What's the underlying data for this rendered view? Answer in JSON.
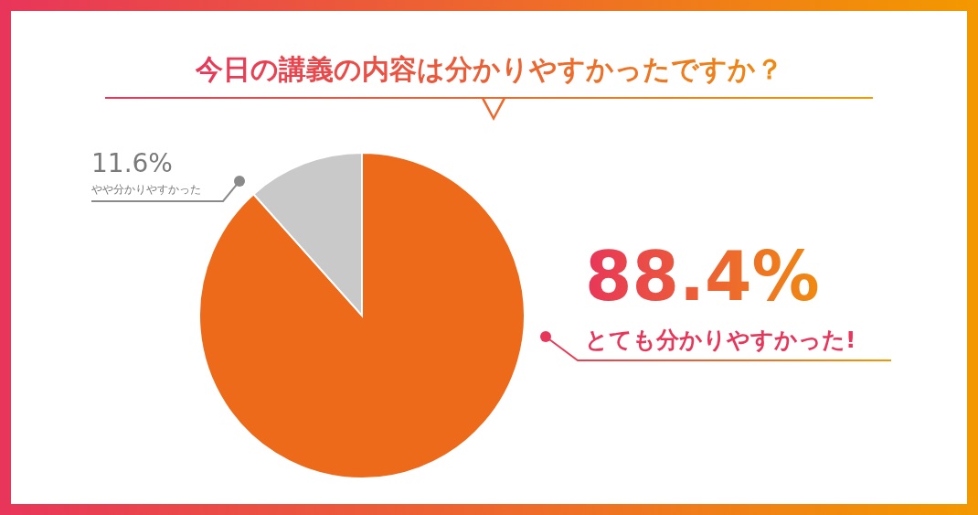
{
  "chart_data": {
    "type": "pie",
    "title": "今日の講義の内容は分かりやすかったですか？",
    "categories": [
      "とても分かりやすかった!",
      "やや分かりやすかった"
    ],
    "values": [
      88.4,
      11.6
    ],
    "colors": [
      "#ed6a1a",
      "#c9c9c9"
    ],
    "value_labels": [
      "88.4%",
      "11.6%"
    ],
    "legend": false
  }
}
